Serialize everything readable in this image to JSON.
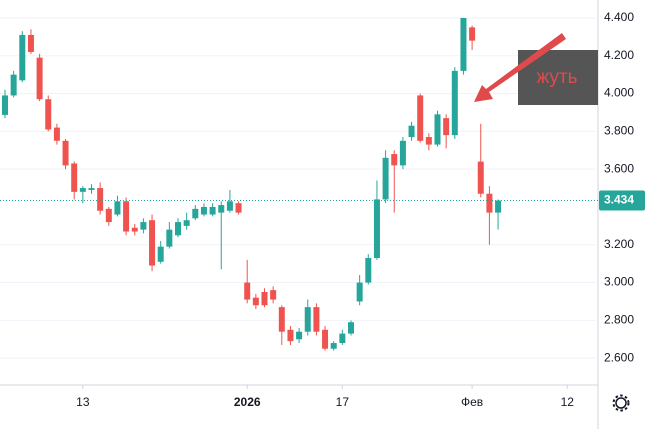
{
  "chart_data": {
    "type": "candlestick",
    "categories": [
      null,
      null,
      null,
      null,
      null,
      null,
      null,
      null,
      null,
      "13",
      null,
      null,
      null,
      null,
      null,
      null,
      null,
      null,
      null,
      null,
      null,
      null,
      null,
      null,
      null,
      null,
      null,
      null,
      "2026",
      null,
      null,
      null,
      null,
      null,
      null,
      null,
      null,
      null,
      null,
      "17",
      null,
      null,
      null,
      null,
      null,
      null,
      null,
      null,
      null,
      null,
      null,
      null,
      null,
      null,
      "Фев",
      null,
      null,
      null,
      null,
      null,
      null,
      null,
      null,
      null,
      null,
      "12"
    ],
    "open": [
      3.887,
      3.99,
      4.07,
      4.31,
      4.19,
      3.97,
      3.82,
      3.75,
      3.63,
      3.48,
      3.49,
      3.5,
      3.39,
      3.36,
      3.43,
      3.29,
      3.28,
      3.33,
      3.11,
      3.19,
      3.25,
      3.3,
      3.34,
      3.36,
      3.36,
      3.37,
      3.38,
      3.42,
      3.0,
      2.92,
      2.95,
      2.96,
      2.87,
      2.75,
      2.7,
      2.74,
      2.87,
      2.75,
      2.65,
      2.68,
      2.73,
      2.9,
      3.0,
      3.13,
      3.44,
      3.68,
      3.62,
      3.77,
      3.99,
      3.77,
      3.73,
      3.87,
      3.78,
      4.12,
      4.35,
      3.64,
      3.47,
      3.37,
      null,
      null,
      null,
      null,
      null,
      null,
      null,
      null
    ],
    "high": [
      4.02,
      4.12,
      4.33,
      4.34,
      4.21,
      3.99,
      3.84,
      3.76,
      3.64,
      3.51,
      3.52,
      3.53,
      3.4,
      3.46,
      3.45,
      3.31,
      3.34,
      3.36,
      3.22,
      3.32,
      3.34,
      3.37,
      3.41,
      3.42,
      3.42,
      3.43,
      3.49,
      3.43,
      3.12,
      2.94,
      2.97,
      2.98,
      2.88,
      2.77,
      2.76,
      2.91,
      2.89,
      2.77,
      2.69,
      2.75,
      2.8,
      3.04,
      3.15,
      3.54,
      3.7,
      3.7,
      3.77,
      3.85,
      4.0,
      3.79,
      3.91,
      3.89,
      4.14,
      4.4,
      4.36,
      3.84,
      3.51,
      3.44,
      null,
      null,
      null,
      null,
      null,
      null,
      null,
      null
    ],
    "low": [
      3.87,
      3.98,
      4.06,
      4.21,
      3.96,
      3.8,
      3.73,
      3.6,
      3.44,
      3.42,
      3.47,
      3.36,
      3.3,
      3.35,
      3.25,
      3.25,
      3.26,
      3.06,
      3.1,
      3.18,
      3.24,
      3.28,
      3.33,
      3.35,
      3.35,
      3.07,
      3.37,
      3.36,
      2.89,
      2.86,
      2.87,
      2.89,
      2.67,
      2.67,
      2.68,
      2.72,
      2.72,
      2.64,
      2.64,
      2.67,
      2.72,
      2.88,
      2.99,
      3.12,
      3.42,
      3.37,
      3.6,
      3.75,
      3.74,
      3.7,
      3.72,
      3.71,
      3.76,
      4.1,
      4.23,
      3.45,
      3.2,
      3.28,
      null,
      null,
      null,
      null,
      null,
      null,
      null,
      null
    ],
    "close": [
      3.99,
      4.1,
      4.31,
      4.22,
      3.97,
      3.81,
      3.75,
      3.62,
      3.48,
      3.5,
      3.5,
      3.38,
      3.32,
      3.43,
      3.27,
      3.27,
      3.32,
      3.09,
      3.19,
      3.28,
      3.32,
      3.33,
      3.39,
      3.4,
      3.4,
      3.41,
      3.43,
      3.37,
      2.91,
      2.88,
      2.88,
      2.91,
      2.74,
      2.69,
      2.74,
      2.87,
      2.74,
      2.65,
      2.68,
      2.73,
      2.79,
      3.0,
      3.13,
      3.44,
      3.66,
      3.62,
      3.75,
      3.83,
      3.75,
      3.73,
      3.89,
      3.78,
      4.12,
      4.4,
      4.28,
      3.47,
      3.37,
      3.434,
      null,
      null,
      null,
      null,
      null,
      null,
      null,
      null
    ],
    "up_color": "#26a69a",
    "down_color": "#ef5350",
    "last_price": 3.434,
    "ylim": [
      2.458,
      4.495
    ],
    "yticks": [
      {
        "value": 2.6,
        "label": "2.600"
      },
      {
        "value": 2.8,
        "label": "2.800"
      },
      {
        "value": 3.0,
        "label": "3.000"
      },
      {
        "value": 3.2,
        "label": "3.200"
      },
      {
        "value": 3.6,
        "label": "3.600"
      },
      {
        "value": 3.8,
        "label": "3.800"
      },
      {
        "value": 4.0,
        "label": "4.000"
      },
      {
        "value": 4.2,
        "label": "4.200"
      },
      {
        "value": 4.4,
        "label": "4.400"
      }
    ],
    "grid": true,
    "annotation": "жуть"
  }
}
